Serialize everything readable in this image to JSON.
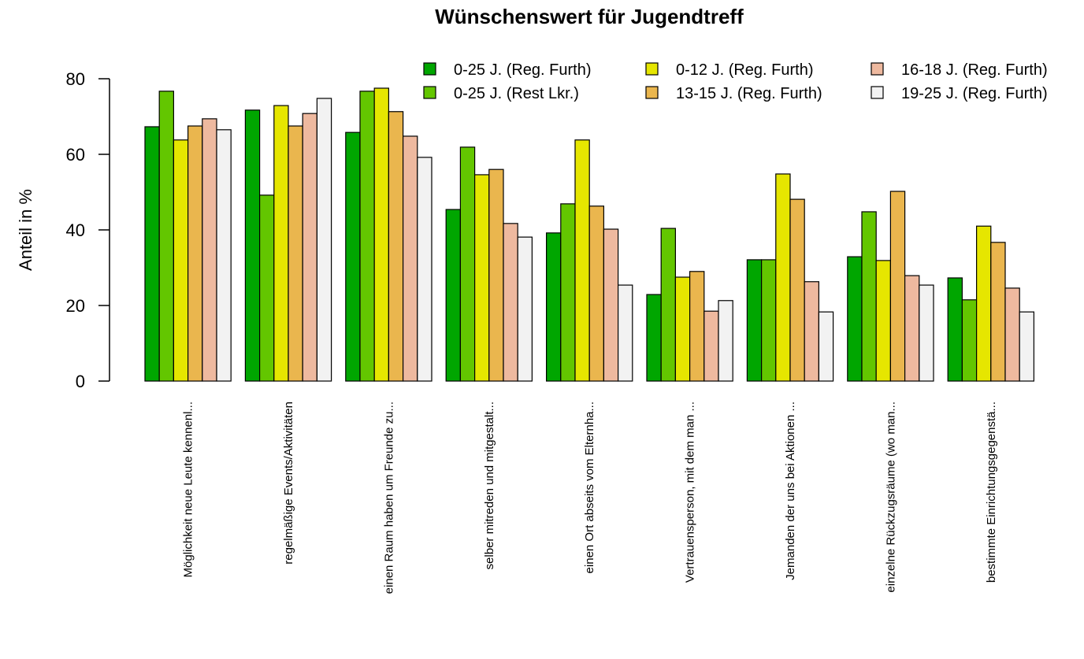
{
  "chart_data": {
    "type": "bar",
    "title": "Wünschenswert für Jugendtreff",
    "y_label": "Anteil in %",
    "categories": [
      "Möglichkeit neue Leute kennenl...",
      "regelmäßige Events/Aktivitäten",
      "einen Raum haben um Freunde zu...",
      "selber mitreden und mitgestalt...",
      "einen Ort abseits vom Elternha...",
      "Vertrauensperson, mit dem man ...",
      "Jemanden der uns bei Aktionen ...",
      "einzelne Rückzugsräume (wo man...",
      "bestimmte Einrichtungsgegenstä..."
    ],
    "series": [
      {
        "name": "0-25 J. (Reg. Furth)",
        "color": "#00A600",
        "values": [
          67.3,
          71.7,
          65.8,
          45.4,
          39.2,
          22.9,
          32.1,
          32.9,
          27.3
        ]
      },
      {
        "name": "0-25 J. (Rest Lkr.)",
        "color": "#63C600",
        "values": [
          76.7,
          49.2,
          76.7,
          61.9,
          46.9,
          40.4,
          32.1,
          44.8,
          21.5
        ]
      },
      {
        "name": "0-12 J. (Reg. Furth)",
        "color": "#E6E600",
        "values": [
          63.8,
          72.9,
          77.5,
          54.6,
          63.8,
          27.5,
          54.8,
          31.9,
          41.0
        ]
      },
      {
        "name": "13-15 J. (Reg. Furth)",
        "color": "#EAB64E",
        "values": [
          67.5,
          67.5,
          71.3,
          56.0,
          46.3,
          29.0,
          48.1,
          50.2,
          36.7
        ]
      },
      {
        "name": "16-18 J. (Reg. Furth)",
        "color": "#EEB99F",
        "values": [
          69.4,
          70.8,
          64.8,
          41.7,
          40.2,
          18.5,
          26.3,
          27.9,
          24.6
        ]
      },
      {
        "name": "19-25 J. (Reg. Furth)",
        "color": "#F2F2F2",
        "values": [
          66.5,
          74.8,
          59.2,
          38.1,
          25.4,
          21.3,
          18.3,
          25.4,
          18.3
        ]
      }
    ],
    "ylim": [
      0,
      80
    ],
    "yticks": [
      0,
      20,
      40,
      60,
      80
    ]
  }
}
